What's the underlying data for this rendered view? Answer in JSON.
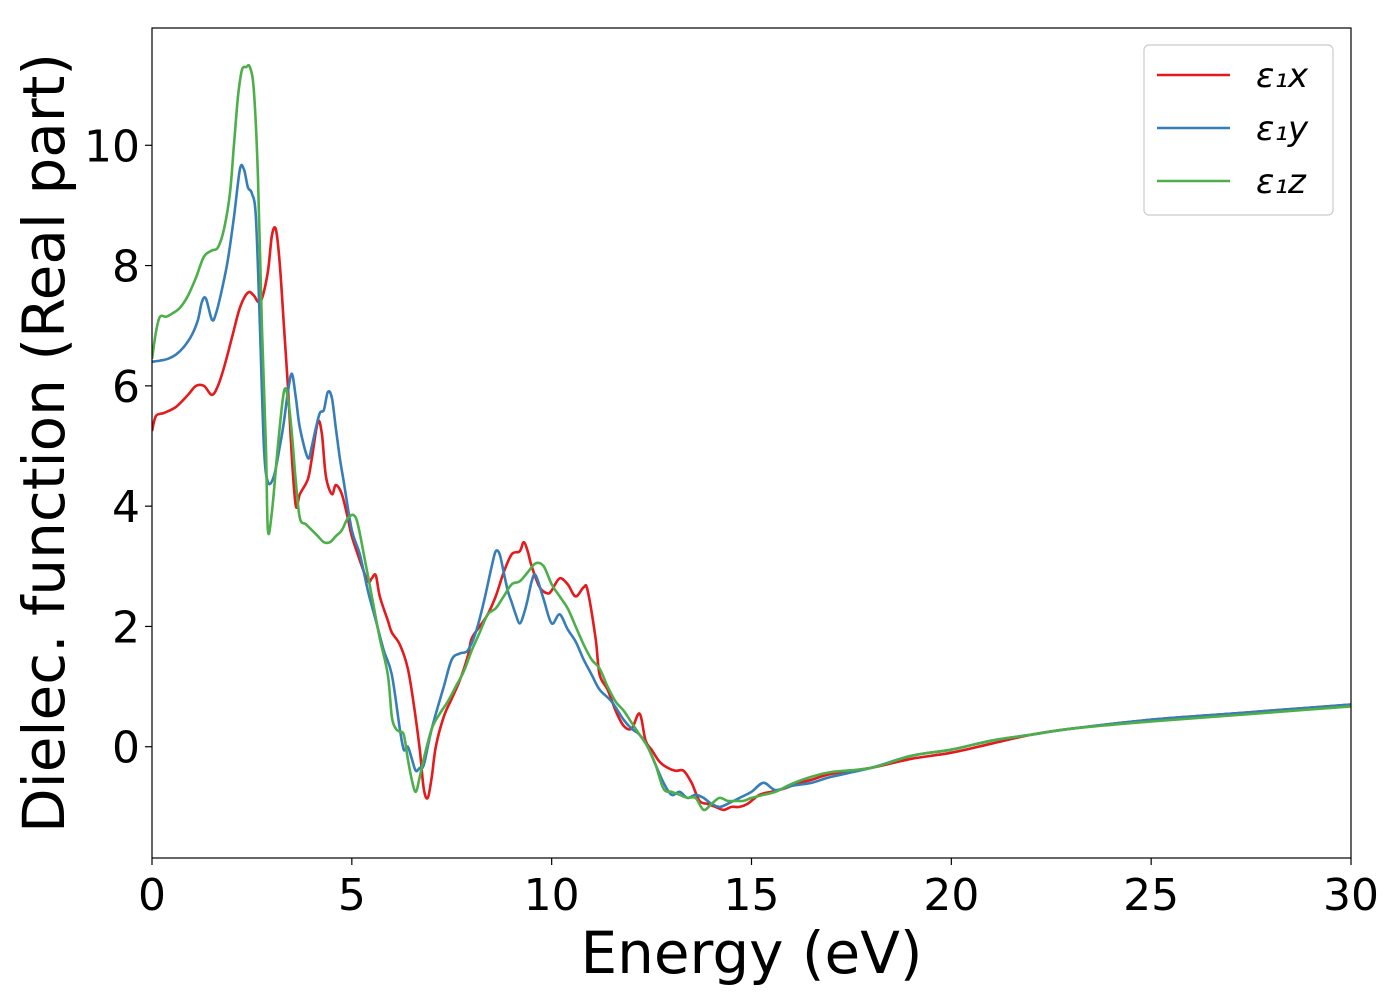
{
  "chart_data": {
    "type": "line",
    "xlabel": "Energy (eV)",
    "ylabel": "Dielec. function (Real part)",
    "xlim": [
      0,
      30
    ],
    "ylim": [
      -1.85,
      11.95
    ],
    "xticks": [
      0,
      5,
      10,
      15,
      20,
      25,
      30
    ],
    "yticks": [
      0,
      2,
      4,
      6,
      8,
      10
    ],
    "grid": false,
    "legend_position": "top-right",
    "series": [
      {
        "name": "ε₁x",
        "color": "#e41a1c",
        "x": [
          0,
          0.1,
          0.3,
          0.6,
          0.9,
          1.1,
          1.3,
          1.5,
          1.65,
          1.8,
          2.0,
          2.2,
          2.4,
          2.55,
          2.65,
          2.75,
          2.9,
          3.0,
          3.1,
          3.2,
          3.3,
          3.4,
          3.5,
          3.6,
          3.7,
          3.9,
          4.0,
          4.15,
          4.25,
          4.35,
          4.5,
          4.6,
          4.75,
          4.9,
          5.0,
          5.2,
          5.4,
          5.5,
          5.6,
          5.7,
          5.9,
          6.0,
          6.2,
          6.4,
          6.55,
          6.7,
          6.8,
          6.9,
          7.0,
          7.1,
          7.3,
          7.5,
          7.7,
          7.9,
          8.0,
          8.2,
          8.4,
          8.6,
          8.8,
          9.0,
          9.2,
          9.3,
          9.4,
          9.5,
          9.7,
          9.9,
          10.0,
          10.2,
          10.4,
          10.6,
          10.8,
          10.9,
          11.1,
          11.2,
          11.4,
          11.6,
          11.8,
          12.0,
          12.2,
          12.35,
          12.5,
          12.7,
          12.9,
          13.1,
          13.3,
          13.5,
          13.7,
          13.9,
          14.1,
          14.3,
          14.5,
          14.7,
          14.9,
          15.2,
          15.5,
          15.8,
          16.2,
          16.5,
          17.0,
          18.0,
          19.0,
          20.0,
          21.0,
          22.0,
          23.0,
          25.0,
          27.0,
          28.0,
          30.0
        ],
        "y": [
          5.25,
          5.5,
          5.55,
          5.65,
          5.85,
          6.0,
          6.0,
          5.85,
          6.0,
          6.3,
          6.8,
          7.3,
          7.55,
          7.5,
          7.4,
          7.45,
          7.9,
          8.5,
          8.6,
          8.0,
          7.0,
          6.0,
          4.8,
          4.0,
          4.2,
          4.45,
          4.8,
          5.4,
          5.2,
          4.5,
          4.2,
          4.35,
          4.2,
          3.8,
          3.5,
          3.1,
          2.75,
          2.8,
          2.85,
          2.5,
          2.1,
          1.9,
          1.7,
          1.3,
          0.7,
          -0.05,
          -0.7,
          -0.85,
          -0.5,
          0.0,
          0.5,
          0.8,
          1.1,
          1.5,
          1.8,
          2.0,
          2.2,
          2.5,
          2.9,
          3.2,
          3.25,
          3.4,
          3.25,
          3.0,
          2.65,
          2.55,
          2.6,
          2.8,
          2.7,
          2.5,
          2.65,
          2.6,
          1.8,
          1.2,
          0.95,
          0.6,
          0.35,
          0.3,
          0.55,
          0.1,
          -0.05,
          -0.25,
          -0.35,
          -0.4,
          -0.4,
          -0.6,
          -0.9,
          -0.95,
          -1.0,
          -1.05,
          -1.0,
          -1.0,
          -0.95,
          -0.8,
          -0.75,
          -0.7,
          -0.6,
          -0.55,
          -0.45,
          -0.35,
          -0.2,
          -0.1,
          0.05,
          0.2,
          0.3,
          0.45,
          0.55,
          0.6,
          0.7
        ]
      },
      {
        "name": "ε₁y",
        "color": "#377eb8",
        "x": [
          0,
          0.2,
          0.4,
          0.6,
          0.8,
          1.0,
          1.15,
          1.25,
          1.35,
          1.5,
          1.6,
          1.75,
          1.9,
          2.05,
          2.2,
          2.3,
          2.4,
          2.5,
          2.6,
          2.7,
          2.8,
          2.9,
          3.05,
          3.2,
          3.3,
          3.4,
          3.5,
          3.6,
          3.7,
          3.9,
          4.0,
          4.1,
          4.2,
          4.3,
          4.4,
          4.5,
          4.6,
          4.7,
          4.8,
          5.0,
          5.2,
          5.4,
          5.6,
          5.8,
          6.0,
          6.2,
          6.3,
          6.4,
          6.5,
          6.6,
          6.7,
          6.8,
          7.0,
          7.3,
          7.5,
          7.7,
          7.9,
          8.1,
          8.3,
          8.5,
          8.6,
          8.7,
          8.8,
          8.9,
          9.0,
          9.1,
          9.2,
          9.3,
          9.4,
          9.5,
          9.6,
          9.8,
          10.0,
          10.2,
          10.4,
          10.6,
          10.8,
          11.0,
          11.2,
          11.5,
          11.8,
          12.0,
          12.2,
          12.4,
          12.6,
          12.8,
          13.0,
          13.2,
          13.4,
          13.6,
          13.8,
          14.0,
          14.2,
          14.4,
          14.7,
          15.0,
          15.3,
          15.6,
          16.0,
          16.5,
          17.0,
          18.0,
          19.0,
          20.0,
          21.0,
          22.0,
          23.0,
          25.0,
          27.0,
          28.0,
          30.0
        ],
        "y": [
          6.4,
          6.42,
          6.45,
          6.52,
          6.65,
          6.85,
          7.1,
          7.4,
          7.45,
          7.1,
          7.2,
          7.6,
          8.1,
          8.8,
          9.6,
          9.6,
          9.3,
          9.2,
          8.8,
          7.0,
          5.0,
          4.4,
          4.5,
          5.0,
          5.4,
          5.9,
          6.2,
          5.8,
          5.3,
          4.8,
          5.0,
          5.3,
          5.55,
          5.6,
          5.9,
          5.8,
          5.3,
          4.8,
          4.4,
          3.6,
          3.2,
          2.6,
          2.1,
          1.6,
          1.2,
          0.3,
          -0.05,
          0.0,
          -0.2,
          -0.4,
          -0.35,
          -0.3,
          0.3,
          1.0,
          1.45,
          1.55,
          1.6,
          1.9,
          2.4,
          3.0,
          3.25,
          3.2,
          2.9,
          2.6,
          2.4,
          2.2,
          2.05,
          2.2,
          2.45,
          2.75,
          2.85,
          2.45,
          2.05,
          2.2,
          1.95,
          1.75,
          1.45,
          1.2,
          0.95,
          0.75,
          0.45,
          0.3,
          0.2,
          0.0,
          -0.3,
          -0.6,
          -0.8,
          -0.75,
          -0.85,
          -0.8,
          -0.85,
          -0.95,
          -1.0,
          -0.95,
          -0.85,
          -0.75,
          -0.6,
          -0.72,
          -0.65,
          -0.6,
          -0.5,
          -0.35,
          -0.15,
          -0.05,
          0.1,
          0.2,
          0.3,
          0.45,
          0.55,
          0.6,
          0.7
        ]
      },
      {
        "name": "ε₁z",
        "color": "#4daf4a",
        "x": [
          0,
          0.1,
          0.2,
          0.35,
          0.5,
          0.7,
          0.9,
          1.1,
          1.3,
          1.5,
          1.65,
          1.8,
          1.95,
          2.05,
          2.15,
          2.25,
          2.35,
          2.45,
          2.55,
          2.65,
          2.75,
          2.85,
          2.9,
          3.0,
          3.15,
          3.3,
          3.4,
          3.5,
          3.6,
          3.7,
          3.85,
          4.0,
          4.15,
          4.3,
          4.45,
          4.6,
          4.75,
          4.9,
          5.05,
          5.15,
          5.3,
          5.5,
          5.7,
          5.9,
          6.0,
          6.1,
          6.2,
          6.3,
          6.4,
          6.5,
          6.6,
          6.7,
          6.8,
          7.0,
          7.2,
          7.4,
          7.6,
          7.8,
          8.0,
          8.2,
          8.4,
          8.6,
          8.8,
          9.0,
          9.2,
          9.4,
          9.6,
          9.8,
          10.0,
          10.2,
          10.4,
          10.6,
          10.8,
          11.0,
          11.2,
          11.4,
          11.6,
          11.8,
          12.0,
          12.2,
          12.4,
          12.6,
          12.8,
          13.0,
          13.2,
          13.4,
          13.6,
          13.8,
          14.0,
          14.2,
          14.4,
          14.6,
          14.8,
          15.0,
          15.3,
          15.6,
          16.0,
          16.5,
          17.0,
          18.0,
          19.0,
          20.0,
          21.0,
          22.0,
          23.0,
          25.0,
          27.0,
          28.0,
          30.0
        ],
        "y": [
          6.45,
          6.9,
          7.15,
          7.15,
          7.2,
          7.3,
          7.5,
          7.8,
          8.15,
          8.25,
          8.3,
          8.6,
          9.2,
          10.0,
          10.8,
          11.25,
          11.3,
          11.3,
          10.9,
          9.5,
          7.0,
          5.0,
          3.6,
          3.9,
          5.0,
          5.9,
          5.8,
          5.2,
          4.4,
          3.8,
          3.7,
          3.6,
          3.5,
          3.4,
          3.4,
          3.5,
          3.6,
          3.8,
          3.85,
          3.7,
          3.2,
          2.5,
          1.8,
          1.2,
          0.5,
          0.3,
          0.25,
          0.2,
          -0.2,
          -0.55,
          -0.75,
          -0.5,
          -0.2,
          0.3,
          0.55,
          0.75,
          1.0,
          1.25,
          1.6,
          1.9,
          2.2,
          2.3,
          2.5,
          2.7,
          2.75,
          2.9,
          3.05,
          3.0,
          2.7,
          2.5,
          2.3,
          2.0,
          1.7,
          1.45,
          1.3,
          1.0,
          0.75,
          0.6,
          0.4,
          0.2,
          0.0,
          -0.3,
          -0.7,
          -0.75,
          -0.8,
          -0.85,
          -0.85,
          -1.05,
          -0.95,
          -0.85,
          -0.9,
          -0.9,
          -0.9,
          -0.85,
          -0.8,
          -0.75,
          -0.62,
          -0.5,
          -0.42,
          -0.35,
          -0.15,
          -0.05,
          0.1,
          0.2,
          0.3,
          0.42,
          0.52,
          0.57,
          0.67
        ]
      }
    ]
  }
}
